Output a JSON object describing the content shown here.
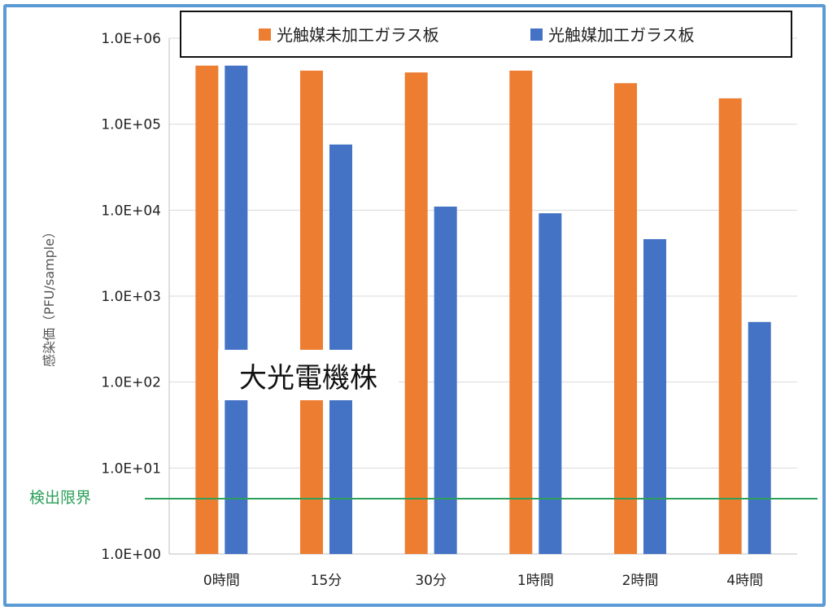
{
  "chart_data": {
    "type": "bar",
    "y_scale": "log",
    "ylim": [
      1,
      1000000
    ],
    "ylabel": "感染価（PFU/sample）",
    "y_ticks": [
      "1.0E+00",
      "1.0E+01",
      "1.0E+02",
      "1.0E+03",
      "1.0E+04",
      "1.0E+05",
      "1.0E+06"
    ],
    "y_tick_values": [
      1,
      10,
      100,
      1000,
      10000,
      100000,
      1000000
    ],
    "categories": [
      "0時間",
      "15分",
      "30分",
      "1時間",
      "2時間",
      "4時間"
    ],
    "series": [
      {
        "name": "光触媒未加工ガラス板",
        "color": "#ed7d31",
        "values": [
          480000,
          420000,
          400000,
          420000,
          300000,
          200000
        ]
      },
      {
        "name": "光触媒加工ガラス板",
        "color": "#4472c4",
        "values": [
          480000,
          58000,
          11000,
          9200,
          4600,
          500
        ]
      }
    ],
    "threshold": {
      "label": "検出限界",
      "value": 4.4,
      "color": "#2ca05a"
    },
    "grid": true,
    "legend_position": "top"
  },
  "watermark": {
    "text": "大光電機株"
  },
  "colors": {
    "frame": "#5b9bd5",
    "grid": "#d9d9d9"
  }
}
